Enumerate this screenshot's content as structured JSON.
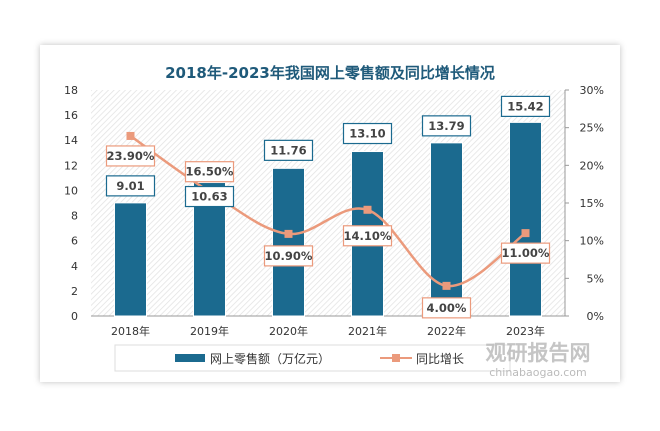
{
  "chart_data": {
    "type": "bar+line",
    "title": "2018年-2023年我国网上零售额及同比增长情况",
    "categories": [
      "2018年",
      "2019年",
      "2020年",
      "2021年",
      "2022年",
      "2023年"
    ],
    "series": [
      {
        "name": "网上零售额（万亿元）",
        "type": "bar",
        "axis": "left",
        "values": [
          9.01,
          10.63,
          11.76,
          13.1,
          13.79,
          15.42
        ],
        "labels": [
          "9.01",
          "10.63",
          "11.76",
          "13.10",
          "13.79",
          "15.42"
        ],
        "color": "#1b6a8f"
      },
      {
        "name": "同比增长",
        "type": "line",
        "axis": "right",
        "values": [
          23.9,
          16.5,
          10.9,
          14.1,
          4.0,
          11.0
        ],
        "labels": [
          "23.90%",
          "16.50%",
          "10.90%",
          "14.10%",
          "4.00%",
          "11.00%"
        ],
        "color": "#eb9a7c"
      }
    ],
    "y_left": {
      "range": [
        0,
        18
      ],
      "ticks": [
        "0",
        "2",
        "4",
        "6",
        "8",
        "10",
        "12",
        "14",
        "16",
        "18"
      ]
    },
    "y_right": {
      "range": [
        0,
        30
      ],
      "ticks": [
        "0%",
        "5%",
        "10%",
        "15%",
        "20%",
        "25%",
        "30%"
      ]
    },
    "legend": "bottom",
    "grid": false
  },
  "watermark": {
    "name": "观研报告网",
    "url": "chinabaogao.com"
  }
}
